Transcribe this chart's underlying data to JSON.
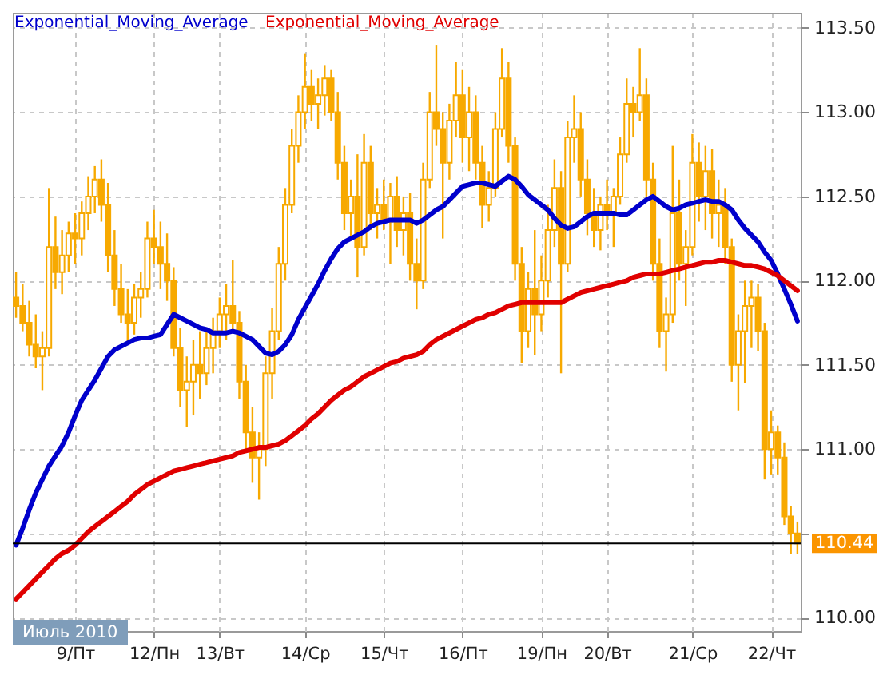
{
  "chart_data": {
    "type": "candlestick",
    "categories": [
      null,
      null,
      null,
      null,
      null,
      null,
      null,
      null,
      null,
      "9/Пт",
      null,
      null,
      null,
      null,
      null,
      null,
      null,
      null,
      null,
      null,
      null,
      "12/Пн",
      null,
      null,
      null,
      null,
      null,
      null,
      null,
      null,
      null,
      "13/Вт",
      null,
      null,
      null,
      null,
      null,
      null,
      null,
      null,
      null,
      null,
      null,
      null,
      "14/Ср",
      null,
      null,
      null,
      null,
      null,
      null,
      null,
      null,
      null,
      null,
      null,
      "15/Чт",
      null,
      null,
      null,
      null,
      null,
      null,
      null,
      null,
      null,
      null,
      null,
      "16/Пт",
      null,
      null,
      null,
      null,
      null,
      null,
      null,
      null,
      null,
      null,
      null,
      "19/Пн",
      null,
      null,
      null,
      null,
      null,
      null,
      null,
      null,
      null,
      "20/Вт",
      null,
      null,
      null,
      null,
      null,
      null,
      null,
      null,
      null,
      null,
      null,
      null,
      "21/Ср",
      null,
      null,
      null,
      null,
      null,
      null,
      null,
      null,
      null,
      null,
      null,
      "22/Чт",
      null,
      null,
      null,
      null
    ],
    "series": [
      {
        "type": "line",
        "name": "Exponential_Moving_Average",
        "color": "#0000cc",
        "values": [
          110.43,
          110.53,
          110.64,
          110.74,
          110.82,
          110.9,
          110.96,
          111.02,
          111.1,
          111.2,
          111.29,
          111.35,
          111.41,
          111.48,
          111.55,
          111.59,
          111.61,
          111.63,
          111.65,
          111.66,
          111.66,
          111.67,
          111.68,
          111.74,
          111.8,
          111.78,
          111.76,
          111.74,
          111.72,
          111.71,
          111.69,
          111.69,
          111.69,
          111.7,
          111.69,
          111.67,
          111.65,
          111.61,
          111.57,
          111.56,
          111.58,
          111.62,
          111.68,
          111.77,
          111.84,
          111.91,
          111.98,
          112.06,
          112.13,
          112.19,
          112.23,
          112.25,
          112.27,
          112.29,
          112.32,
          112.34,
          112.35,
          112.36,
          112.36,
          112.36,
          112.36,
          112.34,
          112.36,
          112.39,
          112.42,
          112.44,
          112.48,
          112.52,
          112.56,
          112.57,
          112.58,
          112.58,
          112.57,
          112.56,
          112.59,
          112.62,
          112.6,
          112.56,
          112.51,
          112.48,
          112.45,
          112.42,
          112.37,
          112.33,
          112.31,
          112.32,
          112.35,
          112.38,
          112.4,
          112.4,
          112.4,
          112.4,
          112.39,
          112.39,
          112.42,
          112.45,
          112.48,
          112.5,
          112.47,
          112.44,
          112.42,
          112.43,
          112.45,
          112.46,
          112.47,
          112.48,
          112.47,
          112.47,
          112.45,
          112.42,
          112.36,
          112.31,
          112.27,
          112.23,
          112.17,
          112.12,
          112.04,
          111.95,
          111.86,
          111.76
        ]
      },
      {
        "type": "line",
        "name": "Exponential_Moving_Average",
        "color": "#e00000",
        "values": [
          110.11,
          110.15,
          110.19,
          110.23,
          110.27,
          110.31,
          110.35,
          110.38,
          110.4,
          110.43,
          110.47,
          110.51,
          110.54,
          110.57,
          110.6,
          110.63,
          110.66,
          110.69,
          110.73,
          110.76,
          110.79,
          110.81,
          110.83,
          110.85,
          110.87,
          110.88,
          110.89,
          110.9,
          110.91,
          110.92,
          110.93,
          110.94,
          110.95,
          110.96,
          110.98,
          110.99,
          111.0,
          111.01,
          111.01,
          111.02,
          111.03,
          111.05,
          111.08,
          111.11,
          111.14,
          111.18,
          111.21,
          111.25,
          111.29,
          111.32,
          111.35,
          111.37,
          111.4,
          111.43,
          111.45,
          111.47,
          111.49,
          111.51,
          111.52,
          111.54,
          111.55,
          111.56,
          111.58,
          111.62,
          111.65,
          111.67,
          111.69,
          111.71,
          111.73,
          111.75,
          111.77,
          111.78,
          111.8,
          111.81,
          111.83,
          111.85,
          111.86,
          111.87,
          111.87,
          111.87,
          111.87,
          111.87,
          111.87,
          111.87,
          111.89,
          111.91,
          111.93,
          111.94,
          111.95,
          111.96,
          111.97,
          111.98,
          111.99,
          112.0,
          112.02,
          112.03,
          112.04,
          112.04,
          112.04,
          112.05,
          112.06,
          112.07,
          112.08,
          112.09,
          112.1,
          112.11,
          112.11,
          112.12,
          112.12,
          112.11,
          112.1,
          112.09,
          112.09,
          112.08,
          112.07,
          112.05,
          112.03,
          112.0,
          111.97,
          111.94
        ]
      },
      {
        "type": "candlestick",
        "color": "#f7a900",
        "ohlc": [
          [
            111.9,
            112.05,
            111.78,
            111.85
          ],
          [
            111.85,
            111.98,
            111.7,
            111.75
          ],
          [
            111.75,
            111.88,
            111.55,
            111.62
          ],
          [
            111.62,
            111.8,
            111.48,
            111.55
          ],
          [
            111.55,
            111.7,
            111.35,
            111.6
          ],
          [
            111.6,
            112.55,
            111.55,
            112.2
          ],
          [
            112.2,
            112.38,
            111.95,
            112.05
          ],
          [
            112.05,
            112.3,
            111.92,
            112.15
          ],
          [
            112.15,
            112.35,
            112.05,
            112.28
          ],
          [
            112.28,
            112.4,
            112.1,
            112.25
          ],
          [
            112.25,
            112.47,
            112.15,
            112.4
          ],
          [
            112.4,
            112.62,
            112.3,
            112.5
          ],
          [
            112.5,
            112.68,
            112.4,
            112.6
          ],
          [
            112.6,
            112.72,
            112.35,
            112.45
          ],
          [
            112.45,
            112.58,
            112.05,
            112.15
          ],
          [
            112.15,
            112.3,
            111.85,
            111.95
          ],
          [
            111.95,
            112.1,
            111.75,
            111.8
          ],
          [
            111.8,
            111.95,
            111.64,
            111.75
          ],
          [
            111.75,
            111.98,
            111.68,
            111.9
          ],
          [
            111.9,
            112.05,
            111.78,
            111.95
          ],
          [
            111.95,
            112.35,
            111.9,
            112.25
          ],
          [
            112.25,
            112.42,
            112.1,
            112.2
          ],
          [
            112.2,
            112.35,
            111.95,
            112.1
          ],
          [
            112.1,
            112.28,
            111.88,
            112.0
          ],
          [
            112.0,
            112.08,
            111.55,
            111.6
          ],
          [
            111.6,
            111.72,
            111.25,
            111.35
          ],
          [
            111.35,
            111.55,
            111.13,
            111.4
          ],
          [
            111.4,
            111.65,
            111.2,
            111.5
          ],
          [
            111.5,
            111.7,
            111.3,
            111.45
          ],
          [
            111.45,
            111.72,
            111.38,
            111.6
          ],
          [
            111.6,
            111.78,
            111.45,
            111.7
          ],
          [
            111.7,
            111.9,
            111.6,
            111.8
          ],
          [
            111.8,
            111.98,
            111.65,
            111.85
          ],
          [
            111.85,
            112.12,
            111.7,
            111.75
          ],
          [
            111.75,
            111.82,
            111.3,
            111.4
          ],
          [
            111.4,
            111.5,
            111.0,
            111.1
          ],
          [
            111.1,
            111.25,
            110.8,
            110.95
          ],
          [
            110.95,
            111.1,
            110.7,
            111.0
          ],
          [
            111.0,
            111.55,
            110.9,
            111.45
          ],
          [
            111.45,
            111.84,
            111.3,
            111.7
          ],
          [
            111.7,
            112.2,
            111.65,
            112.1
          ],
          [
            112.1,
            112.55,
            112.0,
            112.45
          ],
          [
            112.45,
            112.9,
            112.4,
            112.8
          ],
          [
            112.8,
            113.1,
            112.7,
            113.0
          ],
          [
            113.0,
            113.35,
            112.9,
            113.15
          ],
          [
            113.15,
            113.25,
            112.95,
            113.05
          ],
          [
            113.05,
            113.2,
            112.9,
            113.1
          ],
          [
            113.1,
            113.28,
            112.98,
            113.2
          ],
          [
            113.2,
            113.25,
            112.95,
            113.0
          ],
          [
            113.0,
            113.12,
            112.6,
            112.7
          ],
          [
            112.7,
            112.8,
            112.3,
            112.4
          ],
          [
            112.4,
            112.6,
            112.25,
            112.5
          ],
          [
            112.5,
            112.75,
            112.02,
            112.2
          ],
          [
            112.2,
            112.87,
            112.15,
            112.7
          ],
          [
            112.7,
            112.8,
            112.3,
            112.4
          ],
          [
            112.4,
            112.55,
            112.25,
            112.45
          ],
          [
            112.45,
            112.6,
            112.3,
            112.35
          ],
          [
            112.35,
            112.58,
            112.1,
            112.5
          ],
          [
            112.5,
            112.62,
            112.2,
            112.3
          ],
          [
            112.3,
            112.5,
            112.15,
            112.4
          ],
          [
            112.4,
            112.52,
            112.0,
            112.1
          ],
          [
            112.1,
            112.25,
            111.83,
            112.0
          ],
          [
            112.0,
            112.7,
            111.95,
            112.6
          ],
          [
            112.6,
            113.12,
            112.55,
            113.0
          ],
          [
            113.0,
            113.4,
            112.8,
            112.9
          ],
          [
            112.9,
            113.0,
            112.25,
            112.7
          ],
          [
            112.7,
            113.05,
            112.6,
            112.95
          ],
          [
            112.95,
            113.3,
            112.85,
            113.1
          ],
          [
            113.1,
            113.25,
            112.7,
            112.85
          ],
          [
            112.85,
            113.15,
            112.65,
            113.0
          ],
          [
            113.0,
            113.1,
            112.6,
            112.7
          ],
          [
            112.7,
            112.8,
            112.31,
            112.45
          ],
          [
            112.45,
            112.65,
            112.35,
            112.55
          ],
          [
            112.55,
            113.0,
            112.5,
            112.9
          ],
          [
            112.9,
            113.38,
            112.85,
            113.2
          ],
          [
            113.2,
            113.3,
            112.7,
            112.8
          ],
          [
            112.8,
            112.85,
            112.0,
            112.1
          ],
          [
            112.1,
            112.2,
            111.51,
            111.7
          ],
          [
            111.7,
            112.05,
            111.6,
            111.95
          ],
          [
            111.95,
            112.3,
            111.56,
            111.8
          ],
          [
            111.8,
            112.15,
            111.7,
            112.0
          ],
          [
            112.0,
            112.45,
            111.9,
            112.3
          ],
          [
            112.3,
            112.72,
            112.2,
            112.55
          ],
          [
            112.55,
            112.65,
            111.45,
            112.1
          ],
          [
            112.1,
            112.95,
            112.05,
            112.85
          ],
          [
            112.85,
            113.1,
            112.7,
            112.9
          ],
          [
            112.9,
            113.0,
            112.5,
            112.6
          ],
          [
            112.6,
            112.72,
            112.27,
            112.4
          ],
          [
            112.4,
            112.55,
            112.2,
            112.3
          ],
          [
            112.3,
            112.5,
            112.18,
            112.45
          ],
          [
            112.45,
            112.6,
            112.3,
            112.4
          ],
          [
            112.4,
            112.55,
            112.2,
            112.5
          ],
          [
            112.5,
            112.85,
            112.45,
            112.75
          ],
          [
            112.75,
            113.2,
            112.7,
            113.05
          ],
          [
            113.05,
            113.15,
            112.85,
            113.0
          ],
          [
            113.0,
            113.38,
            112.95,
            113.1
          ],
          [
            113.1,
            113.2,
            112.5,
            112.6
          ],
          [
            112.6,
            112.7,
            112.0,
            112.1
          ],
          [
            112.1,
            112.25,
            111.6,
            111.7
          ],
          [
            111.7,
            111.9,
            111.46,
            111.8
          ],
          [
            111.8,
            112.8,
            111.75,
            112.4
          ],
          [
            112.4,
            112.6,
            112.0,
            112.1
          ],
          [
            112.1,
            112.3,
            111.85,
            112.2
          ],
          [
            112.2,
            112.87,
            112.15,
            112.7
          ],
          [
            112.7,
            112.82,
            112.35,
            112.5
          ],
          [
            112.5,
            112.8,
            112.3,
            112.65
          ],
          [
            112.65,
            112.78,
            112.25,
            112.4
          ],
          [
            112.4,
            112.6,
            112.2,
            112.45
          ],
          [
            112.45,
            112.55,
            112.1,
            112.2
          ],
          [
            112.2,
            112.25,
            111.4,
            111.5
          ],
          [
            111.5,
            111.8,
            111.23,
            111.7
          ],
          [
            111.7,
            112.0,
            111.39,
            111.85
          ],
          [
            111.85,
            112.0,
            111.6,
            111.9
          ],
          [
            111.9,
            111.98,
            111.58,
            111.7
          ],
          [
            111.7,
            111.75,
            110.82,
            111.0
          ],
          [
            111.0,
            111.23,
            110.85,
            111.1
          ],
          [
            111.1,
            111.14,
            110.85,
            110.95
          ],
          [
            110.95,
            111.04,
            110.55,
            110.6
          ],
          [
            110.6,
            110.66,
            110.38,
            110.5
          ],
          [
            110.5,
            110.57,
            110.38,
            110.44
          ]
        ]
      }
    ],
    "ylim": [
      109.92,
      113.59
    ],
    "yticks": [
      {
        "value": 110,
        "label": "110.00"
      },
      {
        "value": 110.5,
        "label": null
      },
      {
        "value": 111,
        "label": "111.00"
      },
      {
        "value": 111.5,
        "label": "111.50"
      },
      {
        "value": 112,
        "label": "112.00"
      },
      {
        "value": 112.5,
        "label": "112.50"
      },
      {
        "value": 113,
        "label": "113.00"
      },
      {
        "value": 113.5,
        "label": "113.50"
      }
    ],
    "grid": true,
    "legend": "top left",
    "ref_lines": [
      {
        "axis": "y",
        "value": 110.44,
        "label": "110.44",
        "color": "#000000"
      }
    ],
    "annotations": [
      "Июль 2010"
    ]
  }
}
